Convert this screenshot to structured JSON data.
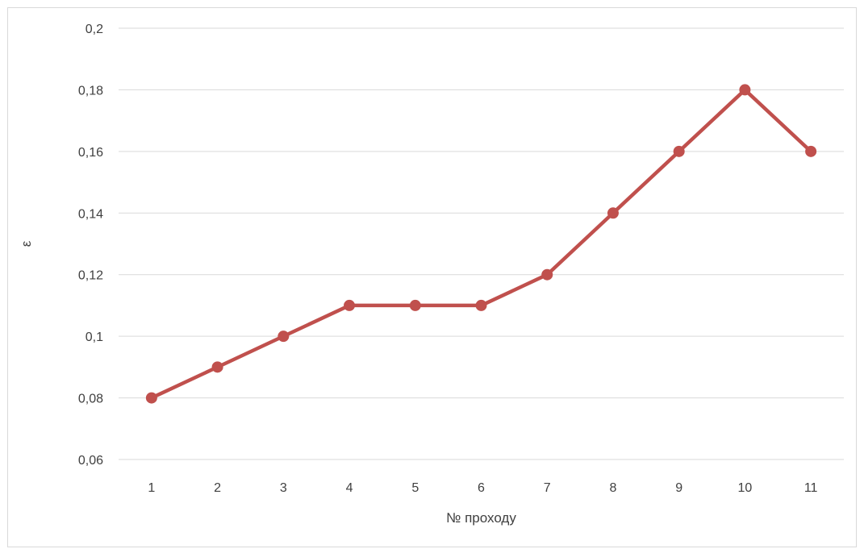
{
  "chart_data": {
    "type": "line",
    "title": "",
    "xlabel": "№ проходу",
    "ylabel": "ε",
    "categories": [
      "1",
      "2",
      "3",
      "4",
      "5",
      "6",
      "7",
      "8",
      "9",
      "10",
      "11"
    ],
    "series": [
      {
        "values": [
          0.08,
          0.09,
          0.1,
          0.11,
          0.11,
          0.11,
          0.12,
          0.14,
          0.16,
          0.18,
          0.16
        ],
        "color": "#c0504d"
      }
    ],
    "ylim": [
      0.06,
      0.2
    ],
    "yticks": [
      0.06,
      0.08,
      0.1,
      0.12,
      0.14,
      0.16,
      0.18,
      0.2
    ],
    "ytick_labels": [
      "0,06",
      "0,08",
      "0,1",
      "0,12",
      "0,14",
      "0,16",
      "0,18",
      "0,2"
    ],
    "grid": true,
    "legend": "none",
    "markers": "circle",
    "gridline_color": "#d9d9d9"
  }
}
